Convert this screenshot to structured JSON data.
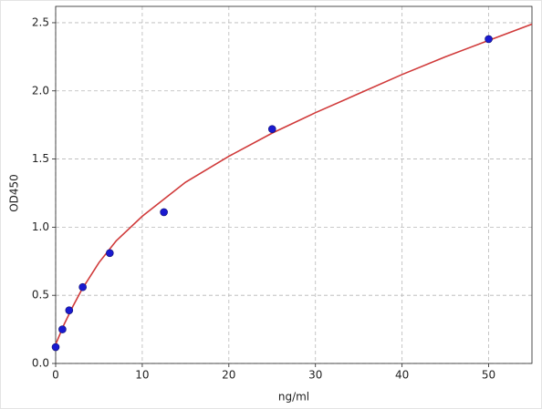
{
  "chart_data": {
    "type": "scatter",
    "xlabel": "ng/ml",
    "ylabel": "OD450",
    "xlim": [
      0,
      55
    ],
    "ylim": [
      0,
      2.62
    ],
    "xticks": [
      0,
      10,
      20,
      30,
      40,
      50
    ],
    "yticks": [
      {
        "value": 0,
        "label": "0.0"
      },
      0.5,
      {
        "value": 1,
        "label": "1.0"
      },
      1.5,
      {
        "value": 2,
        "label": "2.0"
      },
      2.5
    ],
    "grid": true,
    "series": [
      {
        "kind": "line",
        "color": "#d03a3a",
        "x": [
          0,
          1,
          2,
          3,
          5,
          7,
          10,
          15,
          20,
          25,
          30,
          35,
          40,
          45,
          50,
          55
        ],
        "values": [
          0.14,
          0.29,
          0.42,
          0.54,
          0.74,
          0.9,
          1.08,
          1.33,
          1.52,
          1.69,
          1.84,
          1.98,
          2.12,
          2.25,
          2.37,
          2.49
        ]
      },
      {
        "kind": "markers",
        "color": "#1a1ad0",
        "x": [
          0,
          0.78,
          1.56,
          3.125,
          6.25,
          12.5,
          25,
          50
        ],
        "values": [
          0.12,
          0.25,
          0.39,
          0.56,
          0.81,
          1.11,
          1.72,
          2.38
        ]
      }
    ]
  }
}
